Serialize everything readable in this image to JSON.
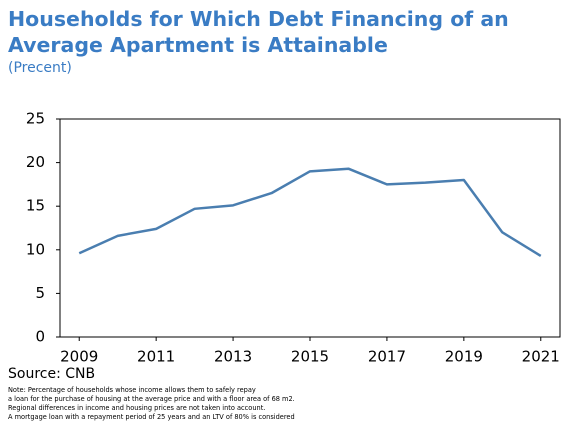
{
  "chart_data": {
    "type": "line",
    "title": "Households for Which Debt Financing of an Average Apartment is Attainable",
    "subtitle": "(Precent)",
    "x": [
      2009,
      2010,
      2011,
      2012,
      2013,
      2014,
      2015,
      2016,
      2017,
      2018,
      2019,
      2020,
      2021
    ],
    "series": [
      {
        "name": "Households",
        "color": "#4a7eb0",
        "values": [
          9.6,
          11.6,
          12.4,
          14.7,
          15.1,
          16.5,
          19.0,
          19.3,
          17.5,
          17.7,
          18.0,
          12.0,
          9.3
        ]
      }
    ],
    "xlim": [
      2008.5,
      2021.5
    ],
    "xticks": [
      2009,
      2011,
      2013,
      2015,
      2017,
      2019,
      2021
    ],
    "ylim": [
      0,
      25
    ],
    "yticks": [
      0,
      5,
      10,
      15,
      20,
      25
    ],
    "source": "Source: CNB",
    "notes": [
      "Note: Percentage of households whose income allows them to safely repay",
      "a loan for the purchase of housing at the average price and with a floor area of 68 m2.",
      "Regional differences in income and housing prices are not taken into account.",
      "A mortgage loan with a repayment period of 25 years and an LTV of 80% is considered"
    ]
  }
}
